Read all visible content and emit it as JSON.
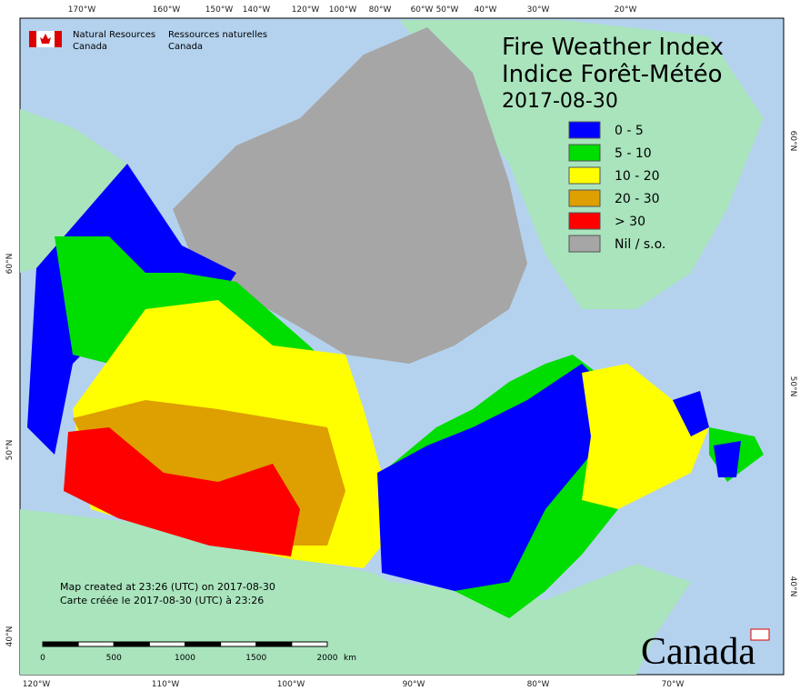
{
  "header": {
    "agency_en": [
      "Natural Resources",
      "Canada"
    ],
    "agency_fr": [
      "Ressources naturelles",
      "Canada"
    ]
  },
  "title": [
    "Fire Weather Index",
    "Indice Forêt-Météo"
  ],
  "date": "2017-08-30",
  "legend": [
    {
      "label": "0 - 5",
      "color": "#0000ff"
    },
    {
      "label": "5 - 10",
      "color": "#00dd00"
    },
    {
      "label": "10 - 20",
      "color": "#ffff00"
    },
    {
      "label": "20 - 30",
      "color": "#dda000"
    },
    {
      "label": "> 30",
      "color": "#ff0000"
    },
    {
      "label": "Nil / s.o.",
      "color": "#a6a6a6"
    }
  ],
  "top_axis": [
    "170°W",
    "160°W",
    "150°W",
    "140°W",
    "120°W",
    "100°W",
    "80°W",
    "60°W",
    "50°W",
    "40°W",
    "30°W",
    "20°W"
  ],
  "bottom_axis": [
    "120°W",
    "110°W",
    "100°W",
    "90°W",
    "80°W",
    "70°W"
  ],
  "left_axis": [
    "60°N",
    "50°N",
    "40°N"
  ],
  "right_axis": [
    "60°N",
    "50°N",
    "40°N"
  ],
  "scale_bar": {
    "ticks": [
      0,
      500,
      1000,
      1500,
      2000
    ],
    "unit": "km"
  },
  "notes": [
    "Map created at 23:26 (UTC) on 2017-08-30",
    "Carte créée le 2017-08-30 (UTC) à 23:26"
  ],
  "wordmark": "Canada"
}
